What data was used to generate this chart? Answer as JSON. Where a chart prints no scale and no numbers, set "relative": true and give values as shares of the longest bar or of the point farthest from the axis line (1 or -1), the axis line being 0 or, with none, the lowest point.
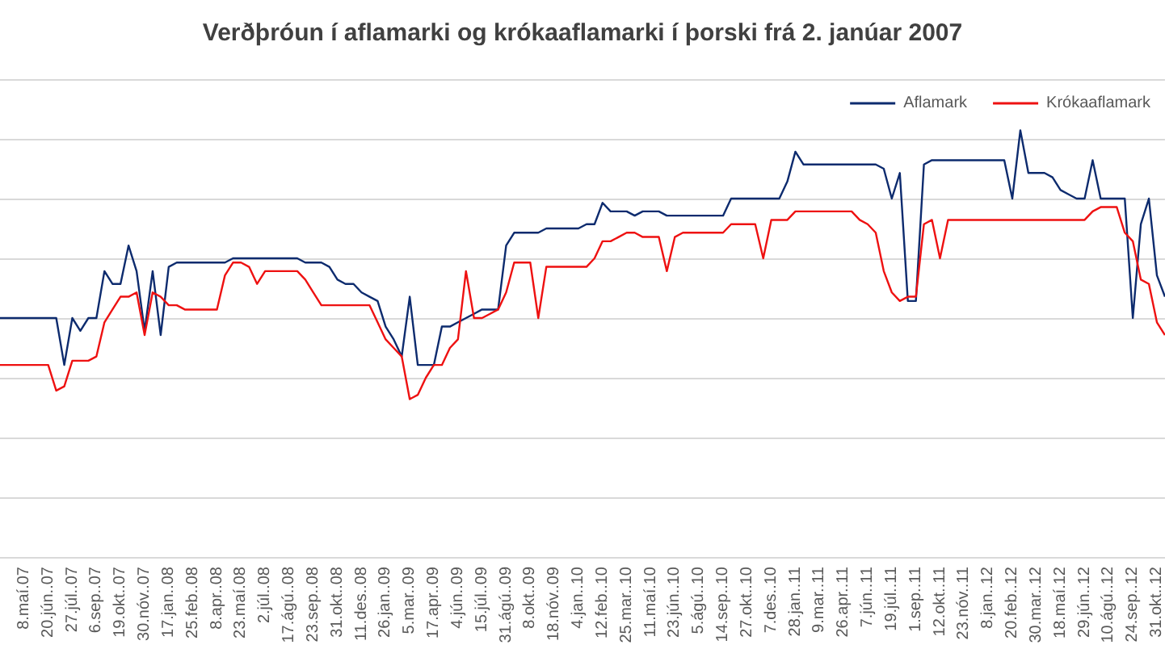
{
  "chart_data": {
    "type": "line",
    "title": "Verðþróun í aflamarki og krókaaflamarki í þorski frá 2. janúar 2007",
    "relative": true,
    "grid": "y",
    "legend": "top right",
    "categories": [
      null,
      null,
      null,
      "8.maí.07",
      null,
      null,
      "20.jún..07",
      null,
      null,
      "27.júl..07",
      null,
      null,
      "6.sep..07",
      null,
      null,
      "19.okt..07",
      null,
      null,
      "30.nóv..07",
      null,
      null,
      "17.jan..08",
      null,
      null,
      "25.feb..08",
      null,
      null,
      "8.apr..08",
      null,
      null,
      "23.maí.08",
      null,
      null,
      "2.júl..08",
      null,
      null,
      "17.ágú..08",
      null,
      null,
      "23.sep..08",
      null,
      null,
      "31.okt..08",
      null,
      null,
      "11.des..08",
      null,
      null,
      "26.jan..09",
      null,
      null,
      "5.mar..09",
      null,
      null,
      "17.apr..09",
      null,
      null,
      "4.jún..09",
      null,
      null,
      "15.júl..09",
      null,
      null,
      "31.ágú..09",
      null,
      null,
      "8.okt..09",
      null,
      null,
      "18.nóv..09",
      null,
      null,
      "4.jan..10",
      null,
      null,
      "12.feb..10",
      null,
      null,
      "25.mar..10",
      null,
      null,
      "11.maí.10",
      null,
      null,
      "23.jún..10",
      null,
      null,
      "5.ágú..10",
      null,
      null,
      "14.sep..10",
      null,
      null,
      "27.okt..10",
      null,
      null,
      "7.des..10",
      null,
      null,
      "28.jan..11",
      null,
      null,
      "9.mar..11",
      null,
      null,
      "26.apr..11",
      null,
      null,
      "7.jún..11",
      null,
      null,
      "19.júl..11",
      null,
      null,
      "1.sep..11",
      null,
      null,
      "12.okt..11",
      null,
      null,
      "23.nóv..11",
      null,
      null,
      "8.jan..12",
      null,
      null,
      "20.feb..12",
      null,
      null,
      "30.mar..12",
      null,
      null,
      "18.maí.12",
      null,
      null,
      "29.jún..12",
      null,
      null,
      "10.ágú..12",
      null,
      null,
      "24.sep..12",
      null,
      null,
      "31.okt..12",
      null
    ],
    "series": [
      {
        "name": "Aflamark",
        "color": "#0d2b6e",
        "values": [
          0.56,
          0.56,
          0.56,
          0.56,
          0.56,
          0.56,
          0.56,
          0.56,
          0.45,
          0.56,
          0.53,
          0.56,
          0.56,
          0.67,
          0.64,
          0.64,
          0.73,
          0.67,
          0.53,
          0.67,
          0.52,
          0.68,
          0.69,
          0.69,
          0.69,
          0.69,
          0.69,
          0.69,
          0.69,
          0.7,
          0.7,
          0.7,
          0.7,
          0.7,
          0.7,
          0.7,
          0.7,
          0.7,
          0.69,
          0.69,
          0.69,
          0.68,
          0.65,
          0.64,
          0.64,
          0.62,
          0.61,
          0.6,
          0.54,
          0.51,
          0.47,
          0.61,
          0.45,
          0.45,
          0.45,
          0.54,
          0.54,
          0.55,
          0.56,
          0.57,
          0.58,
          0.58,
          0.58,
          0.73,
          0.76,
          0.76,
          0.76,
          0.76,
          0.77,
          0.77,
          0.77,
          0.77,
          0.77,
          0.78,
          0.78,
          0.83,
          0.81,
          0.81,
          0.81,
          0.8,
          0.81,
          0.81,
          0.81,
          0.8,
          0.8,
          0.8,
          0.8,
          0.8,
          0.8,
          0.8,
          0.8,
          0.84,
          0.84,
          0.84,
          0.84,
          0.84,
          0.84,
          0.84,
          0.88,
          0.95,
          0.92,
          0.92,
          0.92,
          0.92,
          0.92,
          0.92,
          0.92,
          0.92,
          0.92,
          0.92,
          0.91,
          0.84,
          0.9,
          0.6,
          0.6,
          0.92,
          0.93,
          0.93,
          0.93,
          0.93,
          0.93,
          0.93,
          0.93,
          0.93,
          0.93,
          0.93,
          0.84,
          1,
          0.9,
          0.9,
          0.9,
          0.89,
          0.86,
          0.85,
          0.84,
          0.84,
          0.93,
          0.84,
          0.84,
          0.84,
          0.84,
          0.56,
          0.78,
          0.84,
          0.66,
          0.61
        ]
      },
      {
        "name": "Krókaaflamark",
        "color": "#ee1111",
        "values": [
          0.45,
          0.45,
          0.45,
          0.45,
          0.45,
          0.45,
          0.45,
          0.39,
          0.4,
          0.46,
          0.46,
          0.46,
          0.47,
          0.55,
          0.58,
          0.61,
          0.61,
          0.62,
          0.52,
          0.62,
          0.61,
          0.59,
          0.59,
          0.58,
          0.58,
          0.58,
          0.58,
          0.58,
          0.66,
          0.69,
          0.69,
          0.68,
          0.64,
          0.67,
          0.67,
          0.67,
          0.67,
          0.67,
          0.65,
          0.62,
          0.59,
          0.59,
          0.59,
          0.59,
          0.59,
          0.59,
          0.59,
          0.55,
          0.51,
          0.49,
          0.47,
          0.37,
          0.38,
          0.42,
          0.45,
          0.45,
          0.49,
          0.51,
          0.67,
          0.56,
          0.56,
          0.57,
          0.58,
          0.62,
          0.69,
          0.69,
          0.69,
          0.56,
          0.68,
          0.68,
          0.68,
          0.68,
          0.68,
          0.68,
          0.7,
          0.74,
          0.74,
          0.75,
          0.76,
          0.76,
          0.75,
          0.75,
          0.75,
          0.67,
          0.75,
          0.76,
          0.76,
          0.76,
          0.76,
          0.76,
          0.76,
          0.78,
          0.78,
          0.78,
          0.78,
          0.7,
          0.79,
          0.79,
          0.79,
          0.81,
          0.81,
          0.81,
          0.81,
          0.81,
          0.81,
          0.81,
          0.81,
          0.79,
          0.78,
          0.76,
          0.67,
          0.62,
          0.6,
          0.61,
          0.61,
          0.78,
          0.79,
          0.7,
          0.79,
          0.79,
          0.79,
          0.79,
          0.79,
          0.79,
          0.79,
          0.79,
          0.79,
          0.79,
          0.79,
          0.79,
          0.79,
          0.79,
          0.79,
          0.79,
          0.79,
          0.79,
          0.81,
          0.82,
          0.82,
          0.82,
          0.76,
          0.74,
          0.65,
          0.64,
          0.55,
          0.52
        ]
      }
    ]
  }
}
